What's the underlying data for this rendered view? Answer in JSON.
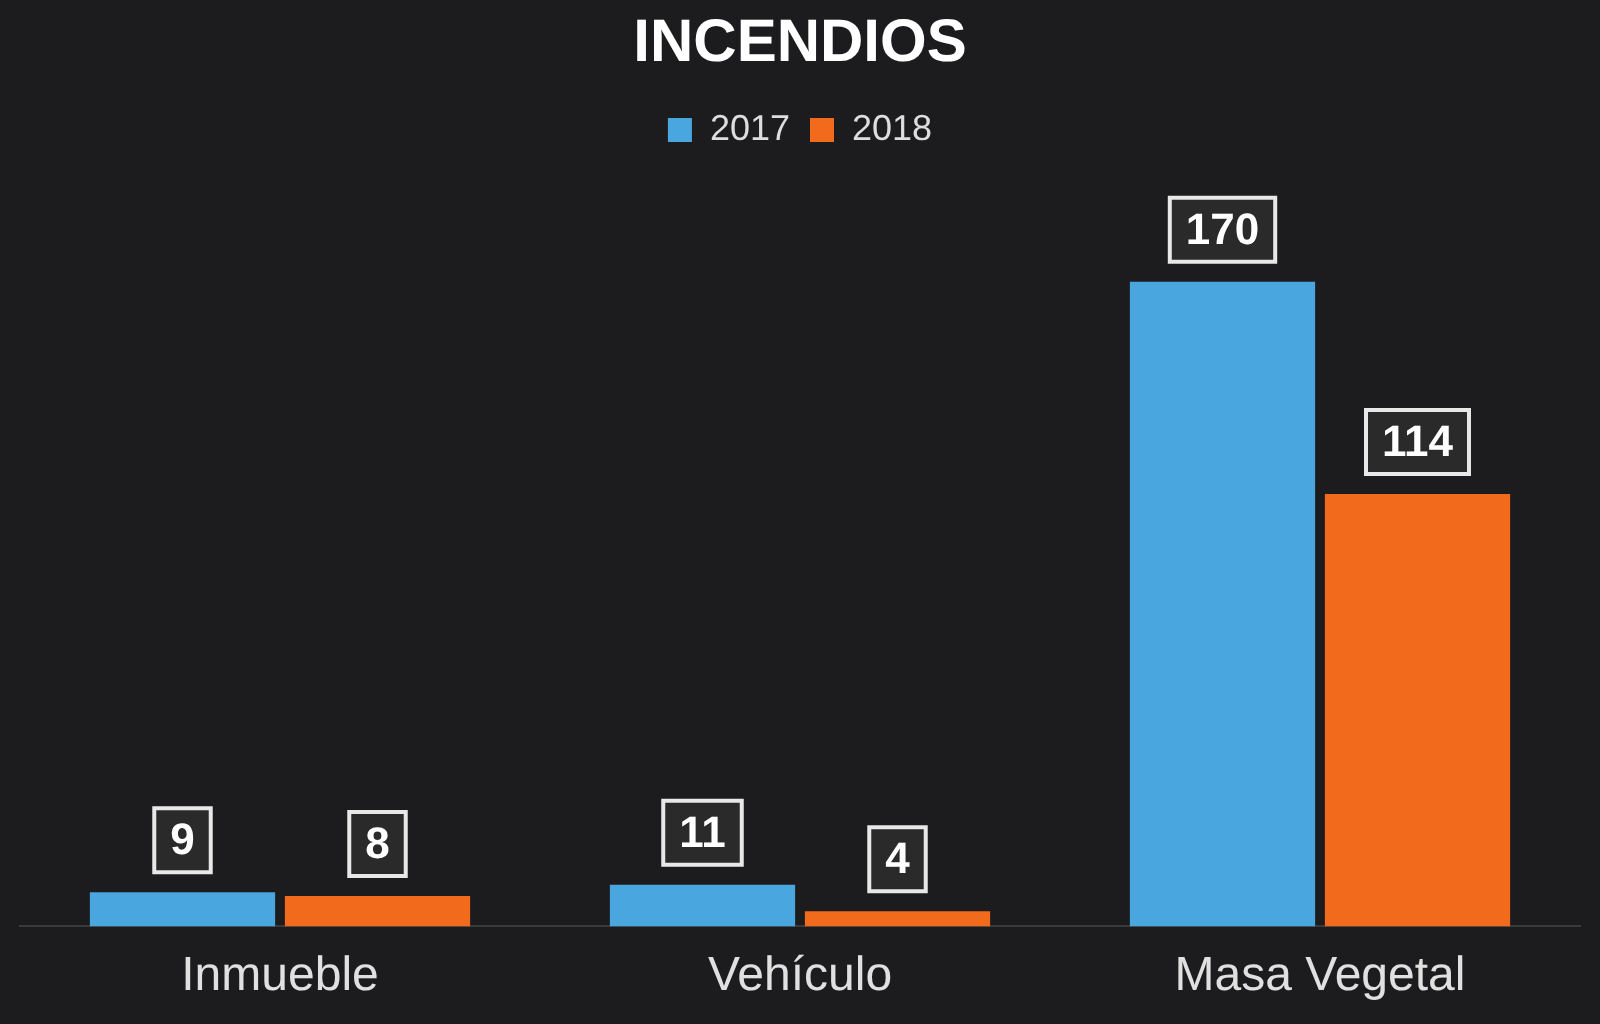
{
  "chart_data": {
    "type": "bar",
    "title": "INCENDIOS",
    "categories": [
      "Inmueble",
      "Vehículo",
      "Masa Vegetal"
    ],
    "series": [
      {
        "name": "2017",
        "color": "#4aa6df",
        "values": [
          9,
          11,
          170
        ]
      },
      {
        "name": "2018",
        "color": "#f26b1d",
        "values": [
          8,
          4,
          114
        ]
      }
    ],
    "data_labels": true,
    "legend": "top",
    "grid": false
  }
}
